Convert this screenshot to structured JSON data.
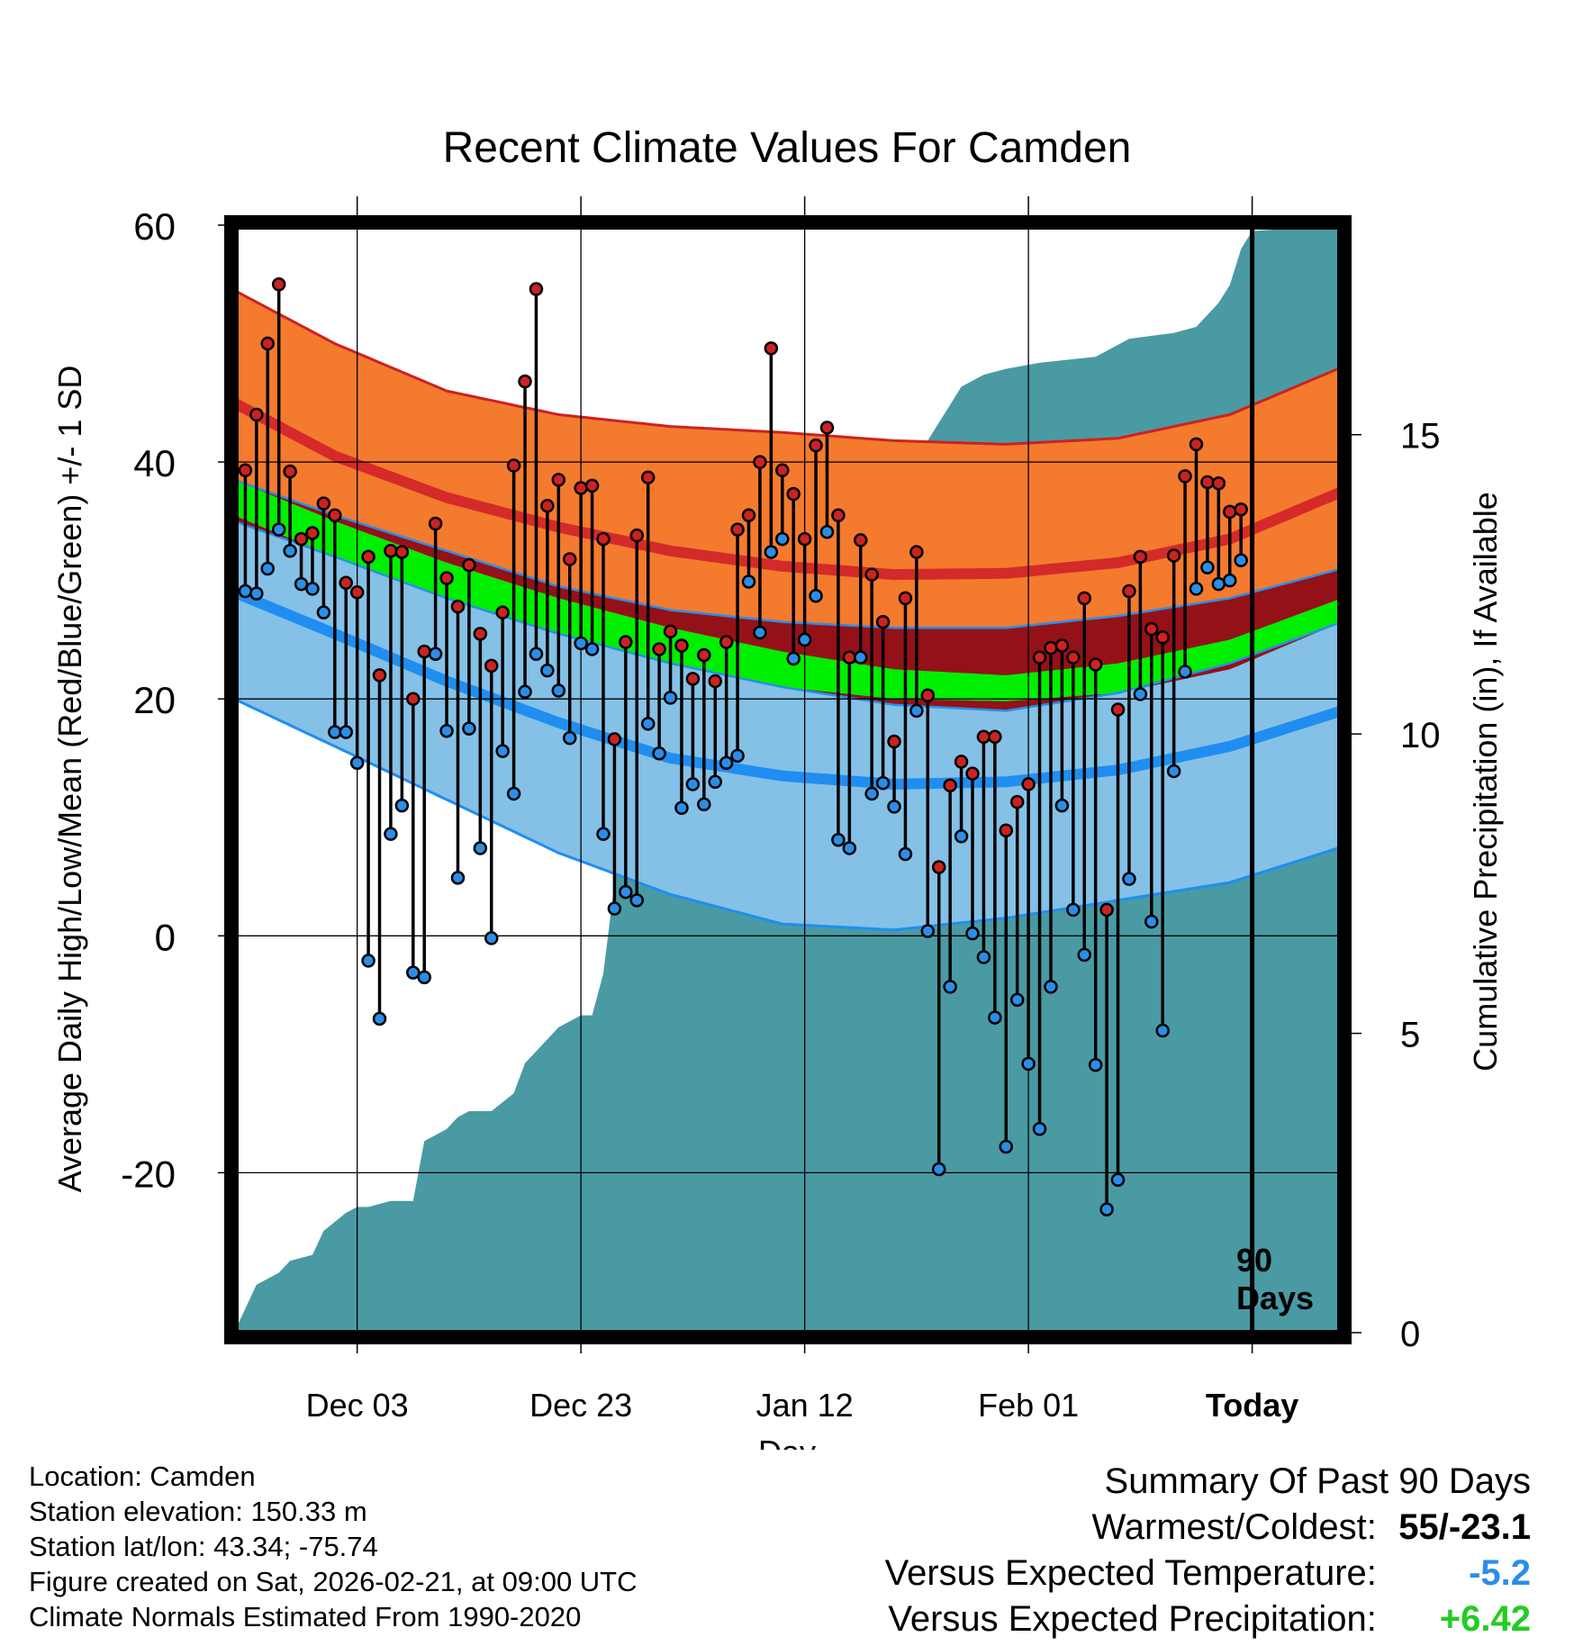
{
  "chart_data": {
    "type": "line",
    "title": "Recent Climate Values For Camden",
    "xlabel": "Day",
    "ylabel": "Average Daily High/Low/Mean (Red/Blue/Green) +/- 1 SD",
    "y2label": "Cumulative Precipitation (in), If Available",
    "ylim": [
      -33.5,
      60
    ],
    "y_ticks": [
      -20,
      0,
      20,
      40,
      60
    ],
    "y2lim": [
      0,
      18.5
    ],
    "y2_ticks": [
      0,
      5,
      10,
      15
    ],
    "xlim": [
      1,
      100
    ],
    "x_ticks": [
      {
        "day": 12,
        "label": "Dec 03"
      },
      {
        "day": 32,
        "label": "Dec 23"
      },
      {
        "day": 52,
        "label": "Jan 12"
      },
      {
        "day": 72,
        "label": "Feb 01"
      },
      {
        "day": 92,
        "label": "Today"
      }
    ],
    "today_day": 92,
    "today_marker_label": "90 Days",
    "normals": {
      "days": [
        1,
        10,
        20,
        30,
        40,
        50,
        60,
        70,
        80,
        90,
        100
      ],
      "high_upper": [
        54.5,
        50,
        46,
        44,
        43,
        42.5,
        41.8,
        41.5,
        42,
        44,
        48
      ],
      "high_mean": [
        45,
        40.5,
        37,
        34.5,
        32.5,
        31.2,
        30.5,
        30.6,
        31.5,
        33.5,
        37.5
      ],
      "mean_upper": [
        38.5,
        35,
        31.5,
        28.5,
        26,
        24,
        22.5,
        22,
        23,
        25,
        28.5
      ],
      "mean_lower": [
        35.5,
        32,
        28.5,
        25.5,
        23,
        21,
        20,
        19.8,
        20.5,
        22.5,
        26.5
      ],
      "high_lower": [
        38.5,
        35.5,
        32.5,
        29.5,
        27.5,
        26.5,
        26,
        26,
        27,
        28.5,
        31
      ],
      "low_upper": [
        35,
        32,
        28.5,
        25.5,
        23,
        21,
        19.5,
        19,
        20.5,
        23,
        26.5
      ],
      "low_mean": [
        29,
        25.5,
        21.5,
        18,
        15,
        13.5,
        12.8,
        13,
        14,
        16,
        19
      ],
      "low_lower": [
        20,
        16,
        11.5,
        7,
        3.5,
        1,
        0.5,
        1.5,
        3,
        4.5,
        7.5
      ]
    },
    "series": [
      {
        "name": "Daily High",
        "color": "#cc2222",
        "values": [
          39.3,
          44,
          50,
          55,
          39.2,
          33.5,
          34,
          36.5,
          35.5,
          29.8,
          29,
          32,
          22,
          32.5,
          32.4,
          20,
          24,
          34.8,
          30.2,
          27.8,
          31.3,
          25.5,
          22.8,
          27.3,
          39.7,
          46.8,
          54.6,
          36.3,
          38.5,
          31.8,
          37.8,
          38,
          33.5,
          16.6,
          24.8,
          33.8,
          38.7,
          24.2,
          25.7,
          24.5,
          21.7,
          23.7,
          21.5,
          24.8,
          34.3,
          35.5,
          40,
          49.6,
          39.3,
          37.3,
          33.5,
          41.4,
          42.9,
          35.5,
          23.5,
          33.4,
          30.5,
          26.5,
          16.4,
          28.5,
          32.4,
          20.3,
          5.8,
          12.7,
          14.7,
          13.7,
          16.8,
          16.8,
          8.9,
          11.3,
          12.8,
          23.5,
          24.3,
          24.5,
          23.5,
          28.5,
          22.9,
          2.2,
          19.1,
          29.1,
          32,
          25.9,
          25.2,
          32.1,
          38.8,
          41.5,
          38.3,
          38.2,
          35.8,
          36
        ]
      },
      {
        "name": "Daily Low",
        "color": "#2a8ee8",
        "values": [
          29.1,
          28.9,
          31,
          34.3,
          32.5,
          29.7,
          29.3,
          27.3,
          17.2,
          17.2,
          14.6,
          -2.1,
          -7,
          8.6,
          11,
          -3.1,
          -3.5,
          23.8,
          17.3,
          4.9,
          17.5,
          7.4,
          -0.2,
          15.6,
          12,
          20.6,
          23.8,
          22.4,
          20.7,
          16.7,
          24.7,
          24.2,
          8.6,
          2.3,
          3.7,
          3,
          17.9,
          15.4,
          20.1,
          10.8,
          12.8,
          11.1,
          13,
          14.6,
          15.2,
          29.9,
          25.6,
          32.4,
          33.5,
          23.4,
          25,
          28.7,
          34.1,
          8.1,
          7.4,
          23.5,
          12,
          12.9,
          10.9,
          6.9,
          19,
          0.4,
          -19.7,
          -4.3,
          8.4,
          0.2,
          -1.8,
          -6.9,
          -17.8,
          -5.4,
          -10.8,
          -16.3,
          -4.3,
          11,
          2.2,
          -1.6,
          -10.9,
          -23.1,
          -20.6,
          4.8,
          20.4,
          1.2,
          -8,
          13.9,
          22.3,
          29.3,
          31.1,
          29.7,
          30,
          31.7
        ]
      },
      {
        "name": "Cumulative Precipitation (in)",
        "color": "#4a9aa3",
        "days": [
          1,
          3,
          5,
          6,
          8,
          9,
          11,
          12,
          13,
          15,
          17,
          18,
          19,
          20,
          21,
          22,
          24,
          26,
          27,
          28,
          30,
          32,
          33,
          34,
          35,
          36,
          38,
          40,
          42,
          44,
          45,
          46,
          48,
          49,
          50,
          52,
          53,
          55,
          56,
          60,
          62,
          63,
          64,
          65,
          66,
          68,
          70,
          73,
          78,
          80,
          81,
          85,
          87,
          88,
          89,
          90,
          91,
          92,
          100
        ],
        "values": [
          0,
          0.8,
          1,
          1.2,
          1.3,
          1.7,
          2,
          2.1,
          2.1,
          2.2,
          2.2,
          3.2,
          3.3,
          3.4,
          3.6,
          3.7,
          3.7,
          4,
          4.5,
          4.7,
          5.1,
          5.3,
          5.3,
          6,
          7.5,
          8.5,
          9.3,
          10,
          10.2,
          10.7,
          11.5,
          11.6,
          12.2,
          12.5,
          12.6,
          12.8,
          13.2,
          13.5,
          13.6,
          13.8,
          14.6,
          14.9,
          15.2,
          15.5,
          15.8,
          16,
          16.1,
          16.2,
          16.3,
          16.5,
          16.6,
          16.7,
          16.8,
          17,
          17.2,
          17.5,
          18.1,
          18.4,
          18.5
        ]
      }
    ]
  },
  "info": {
    "location": "Location: Camden",
    "elevation": "Station elevation: 150.33 m",
    "latlon": "Station lat/lon: 43.34; -75.74",
    "created": "Figure created on Sat, 2026-02-21, at 09:00 UTC",
    "normals": "Climate Normals Estimated From 1990-2020"
  },
  "summary": {
    "title": "Summary Of Past 90 Days",
    "warmest_coldest_label": "Warmest/Coldest:",
    "warmest_coldest_value": "55/-23.1",
    "temp_label": "Versus Expected Temperature:",
    "temp_value": "-5.2",
    "temp_color": "#2a8ee8",
    "precip_label": "Versus Expected Precipitation:",
    "precip_value": "+6.42",
    "precip_color": "#22cc22"
  }
}
